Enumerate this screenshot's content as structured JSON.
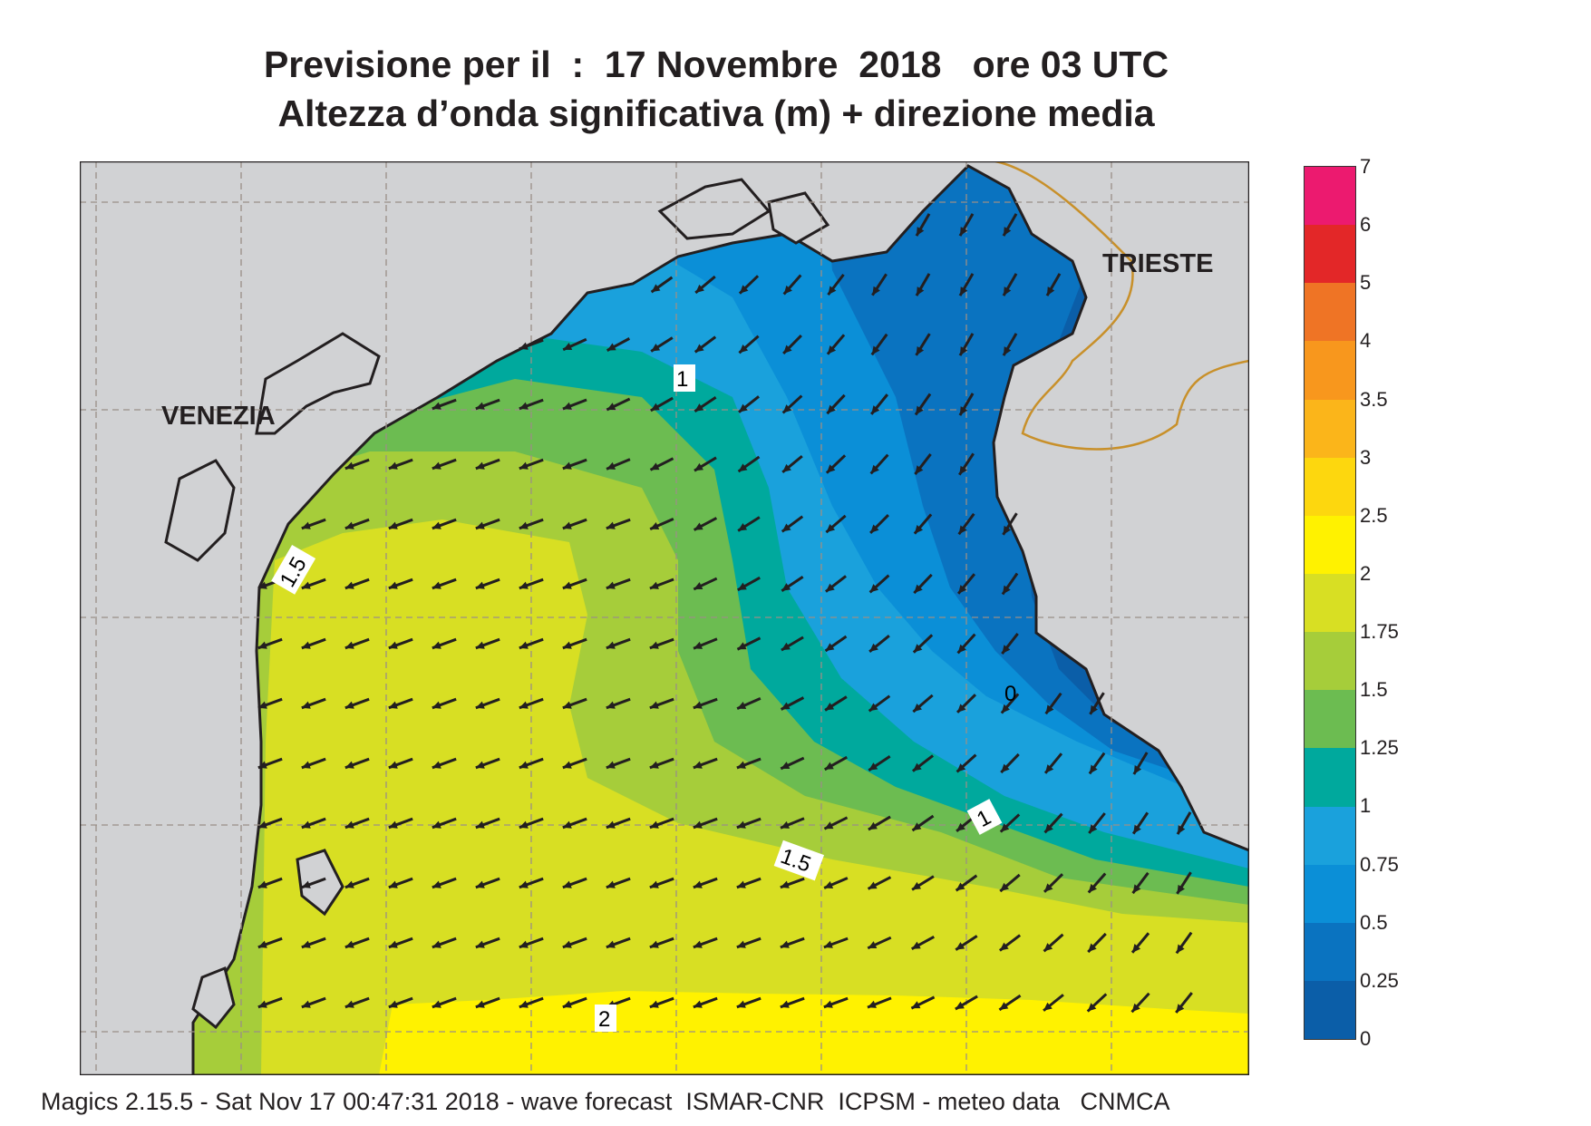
{
  "header": {
    "title_line1": "Previsione per il  :  17 Novembre  2018   ore 03 UTC",
    "title_line2": "Altezza d’onda significativa (m) + direzione media"
  },
  "map": {
    "cities": {
      "venezia": "VENEZIA",
      "trieste": "TRIESTE"
    },
    "contour_labels": {
      "c1_north": "1",
      "c15_west": "1.5",
      "c0_east": "0",
      "c1_east": "1",
      "c15_mid": "1.5",
      "c2_south": "2"
    },
    "colors": {
      "land": "#d1d2d4",
      "coast": "#231f20",
      "border": "#c8902a",
      "grid": "#9a8f86"
    },
    "arrow_direction": "south-west"
  },
  "legend": {
    "ticks": [
      "7",
      "6",
      "5",
      "4",
      "3.5",
      "3",
      "2.5",
      "2",
      "1.75",
      "1.5",
      "1.25",
      "1",
      "0.75",
      "0.5",
      "0.25",
      "0"
    ],
    "colors": [
      "#ec1a6f",
      "#e32728",
      "#ef7425",
      "#f8971d",
      "#fbb51a",
      "#fdd70e",
      "#fff200",
      "#d8df23",
      "#a6cd3a",
      "#6cbc51",
      "#00a99d",
      "#1aa1dc",
      "#0b8fd7",
      "#0a73c0",
      "#0b5ea8"
    ]
  },
  "footer": {
    "text": "Magics 2.15.5 - Sat Nov 17 00:47:31 2018 - wave forecast  ISMAR-CNR  ICPSM - meteo data   CNMCA"
  }
}
